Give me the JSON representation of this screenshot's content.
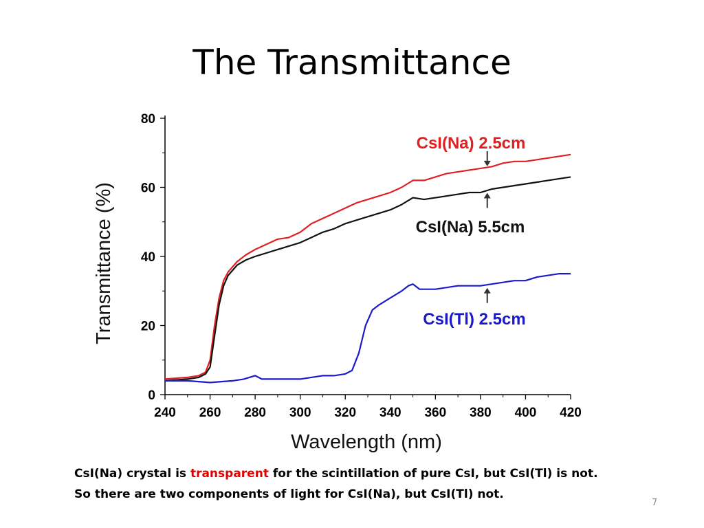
{
  "slide": {
    "title": "The Transmittance",
    "caption_line1_prefix": "CsI(Na) crystal is ",
    "caption_line1_highlight": "transparent",
    "caption_line1_suffix": " for the scintillation of pure CsI, but CsI(Tl) is not.",
    "caption_line2": "So there are two components of light for CsI(Na), but CsI(Tl) not.",
    "page_number": "7",
    "highlight_color": "#e00000"
  },
  "chart_data": {
    "type": "line",
    "xlabel": "Wavelength (nm)",
    "ylabel": "Transmittance (%)",
    "xlim": [
      240,
      420
    ],
    "ylim": [
      0,
      80
    ],
    "x_ticks": [
      240,
      260,
      280,
      300,
      320,
      340,
      360,
      380,
      400,
      420
    ],
    "y_ticks": [
      0,
      20,
      40,
      60,
      80
    ],
    "grid": false,
    "series": [
      {
        "name": "CsI(Na) 2.5cm",
        "color": "#e02020",
        "points": [
          [
            240,
            4.5
          ],
          [
            250,
            5
          ],
          [
            255,
            5.5
          ],
          [
            258,
            6.5
          ],
          [
            260,
            10
          ],
          [
            262,
            20
          ],
          [
            264,
            28
          ],
          [
            266,
            33
          ],
          [
            268,
            35.5
          ],
          [
            272,
            38.5
          ],
          [
            276,
            40.5
          ],
          [
            280,
            42
          ],
          [
            285,
            43.5
          ],
          [
            290,
            45
          ],
          [
            295,
            45.5
          ],
          [
            300,
            47
          ],
          [
            305,
            49.5
          ],
          [
            310,
            51
          ],
          [
            315,
            52.5
          ],
          [
            320,
            54
          ],
          [
            325,
            55.5
          ],
          [
            330,
            56.5
          ],
          [
            335,
            57.5
          ],
          [
            340,
            58.5
          ],
          [
            345,
            60
          ],
          [
            350,
            62
          ],
          [
            355,
            62
          ],
          [
            360,
            63
          ],
          [
            365,
            64
          ],
          [
            370,
            64.5
          ],
          [
            375,
            65
          ],
          [
            380,
            65.5
          ],
          [
            385,
            66
          ],
          [
            390,
            67
          ],
          [
            395,
            67.5
          ],
          [
            400,
            67.5
          ],
          [
            405,
            68
          ],
          [
            410,
            68.5
          ],
          [
            415,
            69
          ],
          [
            420,
            69.5
          ]
        ]
      },
      {
        "name": "CsI(Na) 5.5cm",
        "color": "#111111",
        "points": [
          [
            240,
            4
          ],
          [
            250,
            4.5
          ],
          [
            255,
            5
          ],
          [
            258,
            6
          ],
          [
            260,
            8
          ],
          [
            262,
            17
          ],
          [
            264,
            26
          ],
          [
            266,
            31.5
          ],
          [
            268,
            34.5
          ],
          [
            272,
            37.5
          ],
          [
            276,
            39
          ],
          [
            280,
            40
          ],
          [
            285,
            41
          ],
          [
            290,
            42
          ],
          [
            295,
            43
          ],
          [
            300,
            44
          ],
          [
            305,
            45.5
          ],
          [
            310,
            47
          ],
          [
            315,
            48
          ],
          [
            320,
            49.5
          ],
          [
            325,
            50.5
          ],
          [
            330,
            51.5
          ],
          [
            335,
            52.5
          ],
          [
            340,
            53.5
          ],
          [
            345,
            55
          ],
          [
            350,
            57
          ],
          [
            355,
            56.5
          ],
          [
            360,
            57
          ],
          [
            365,
            57.5
          ],
          [
            370,
            58
          ],
          [
            375,
            58.5
          ],
          [
            380,
            58.5
          ],
          [
            385,
            59.5
          ],
          [
            390,
            60
          ],
          [
            395,
            60.5
          ],
          [
            400,
            61
          ],
          [
            405,
            61.5
          ],
          [
            410,
            62
          ],
          [
            415,
            62.5
          ],
          [
            420,
            63
          ]
        ]
      },
      {
        "name": "CsI(Tl) 2.5cm",
        "color": "#1a1acc",
        "points": [
          [
            240,
            4
          ],
          [
            250,
            4
          ],
          [
            260,
            3.5
          ],
          [
            270,
            4
          ],
          [
            275,
            4.5
          ],
          [
            280,
            5.5
          ],
          [
            283,
            4.5
          ],
          [
            290,
            4.5
          ],
          [
            300,
            4.5
          ],
          [
            305,
            5
          ],
          [
            310,
            5.5
          ],
          [
            315,
            5.5
          ],
          [
            320,
            6
          ],
          [
            323,
            7
          ],
          [
            326,
            12
          ],
          [
            329,
            20
          ],
          [
            332,
            24.5
          ],
          [
            335,
            26
          ],
          [
            340,
            28
          ],
          [
            345,
            30
          ],
          [
            348,
            31.5
          ],
          [
            350,
            32
          ],
          [
            353,
            30.5
          ],
          [
            356,
            30.5
          ],
          [
            360,
            30.5
          ],
          [
            365,
            31
          ],
          [
            370,
            31.5
          ],
          [
            375,
            31.5
          ],
          [
            380,
            31.5
          ],
          [
            385,
            32
          ],
          [
            390,
            32.5
          ],
          [
            395,
            33
          ],
          [
            400,
            33
          ],
          [
            405,
            34
          ],
          [
            410,
            34.5
          ],
          [
            415,
            35
          ],
          [
            420,
            35
          ]
        ]
      }
    ],
    "annotations": [
      {
        "text": "CsI(Na) 2.5cm",
        "color": "#e02020",
        "arrow": "down",
        "target": [
          383,
          65.5
        ]
      },
      {
        "text": "CsI(Na) 5.5cm",
        "color": "#111111",
        "arrow": "up",
        "target": [
          383,
          59
        ]
      },
      {
        "text": "CsI(Tl) 2.5cm",
        "color": "#1a1acc",
        "arrow": "up",
        "target": [
          383,
          31.5
        ]
      }
    ]
  }
}
